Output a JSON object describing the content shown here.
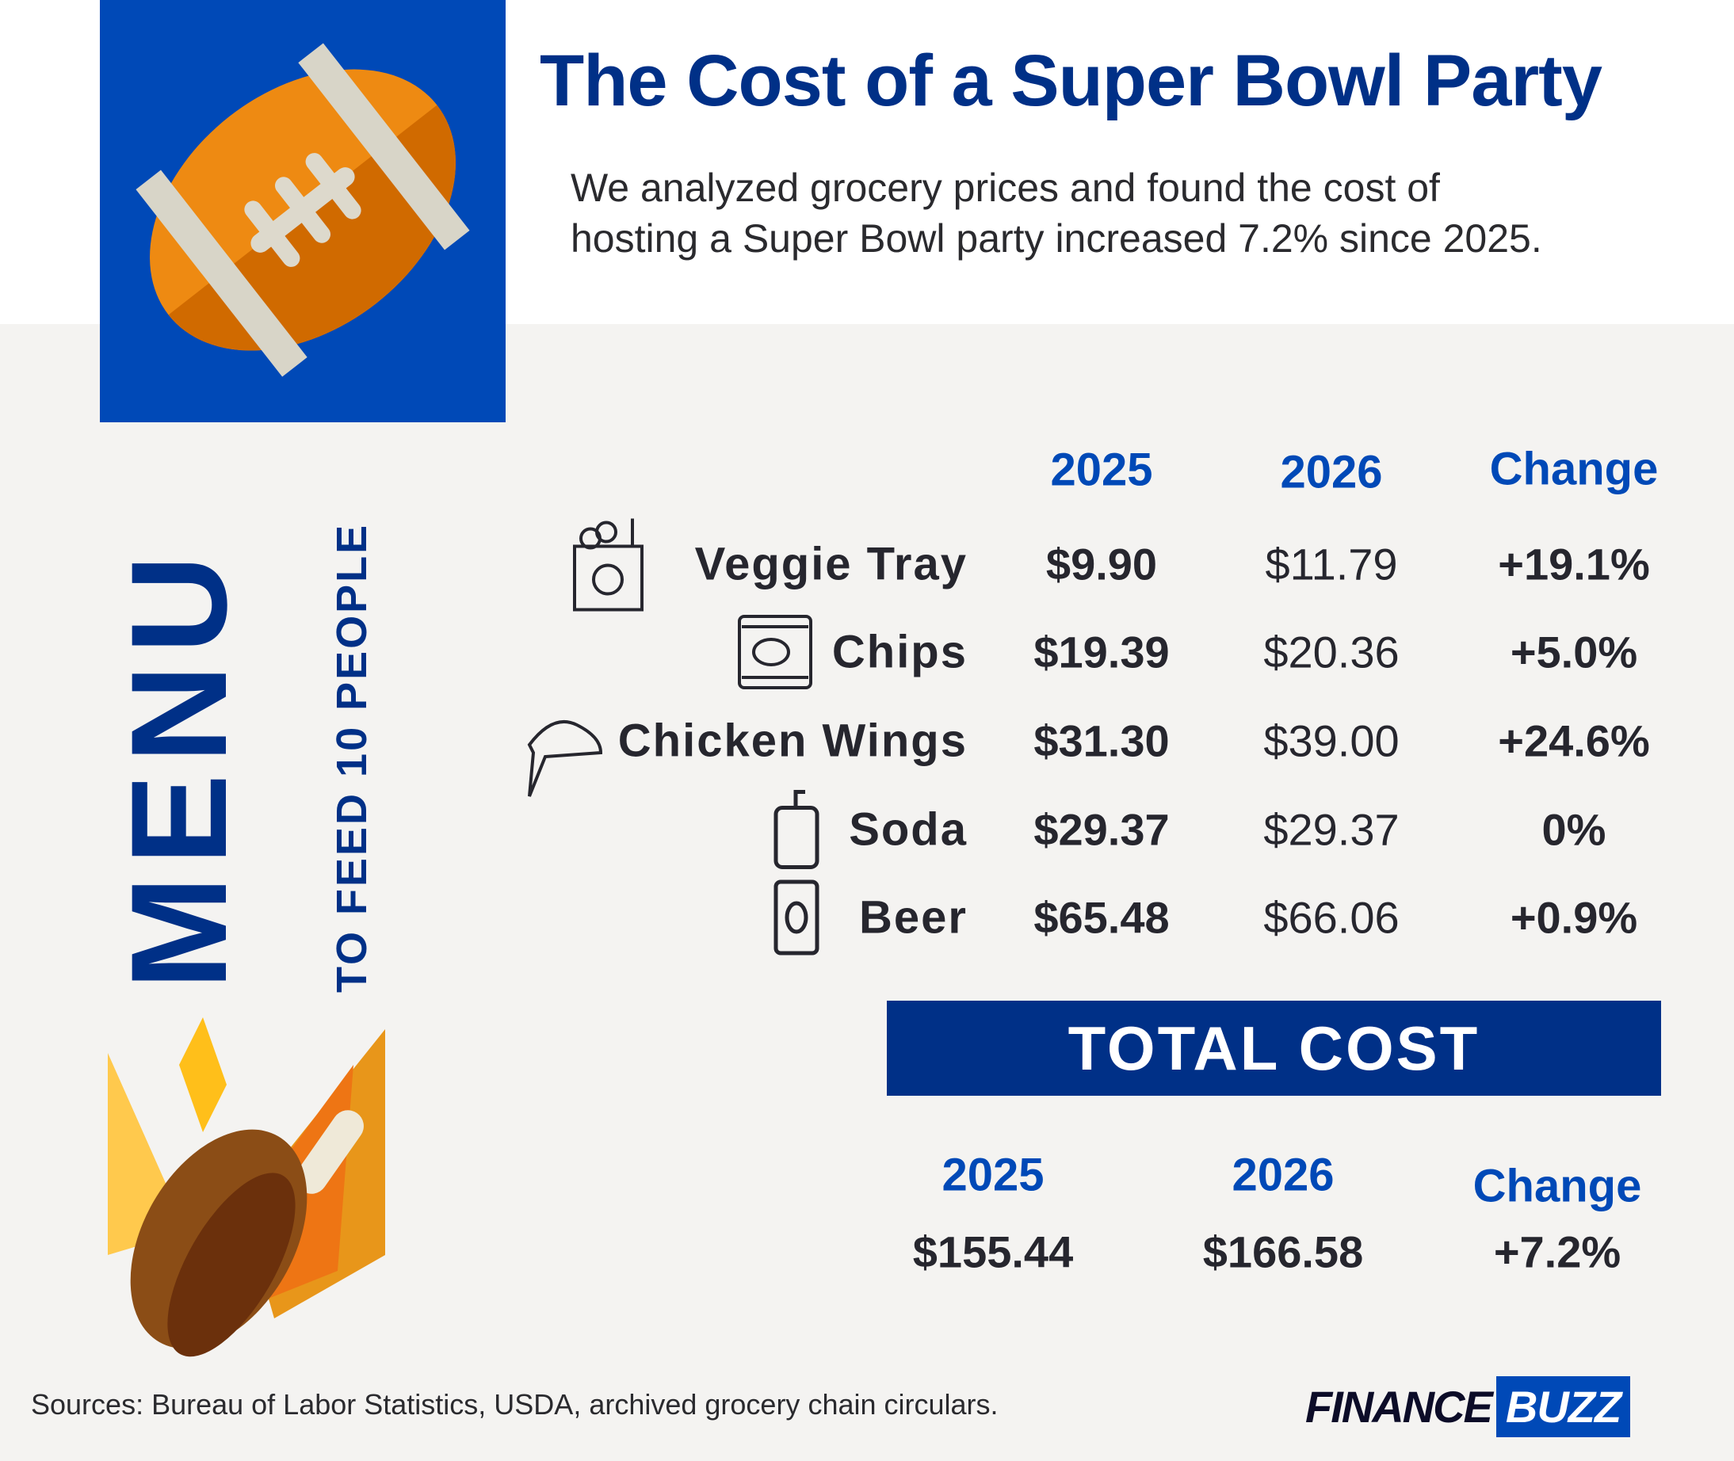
{
  "header": {
    "title": "The Cost of a Super Bowl Party",
    "subtitle_line1": "We analyzed grocery prices and found the cost of",
    "subtitle_line2": "hosting a Super Bowl party increased 7.2% since 2025."
  },
  "side": {
    "menu": "MENU",
    "feed": "TO FEED 10 PEOPLE"
  },
  "table": {
    "columns": [
      "2025",
      "2026",
      "Change"
    ],
    "rows": [
      {
        "name": "Veggie Tray",
        "icon": "veggie-bag-icon",
        "y2025": "$9.90",
        "y2026": "$11.79",
        "change": "+19.1%"
      },
      {
        "name": "Chips",
        "icon": "chips-bag-icon",
        "y2025": "$19.39",
        "y2026": "$20.36",
        "change": "+5.0%"
      },
      {
        "name": "Chicken Wings",
        "icon": "chicken-wing-icon",
        "y2025": "$31.30",
        "y2026": "$39.00",
        "change": "+24.6%"
      },
      {
        "name": "Soda",
        "icon": "soda-cup-icon",
        "y2025": "$29.37",
        "y2026": "$29.37",
        "change": "0%"
      },
      {
        "name": "Beer",
        "icon": "beer-can-icon",
        "y2025": "$65.48",
        "y2026": "$66.06",
        "change": "+0.9%"
      }
    ]
  },
  "total": {
    "banner": "TOTAL COST",
    "columns": [
      "2025",
      "2026",
      "Change"
    ],
    "y2025": "$155.44",
    "y2026": "$166.58",
    "change": "+7.2%"
  },
  "footer": {
    "sources": "Sources: Bureau of Labor Statistics, USDA, archived grocery chain circulars.",
    "logo_a": "FINANCE",
    "logo_b": "BUZZ"
  },
  "colors": {
    "navy": "#003087",
    "blue": "#0049b7",
    "text": "#26262e",
    "orange": "#ee8a12"
  }
}
